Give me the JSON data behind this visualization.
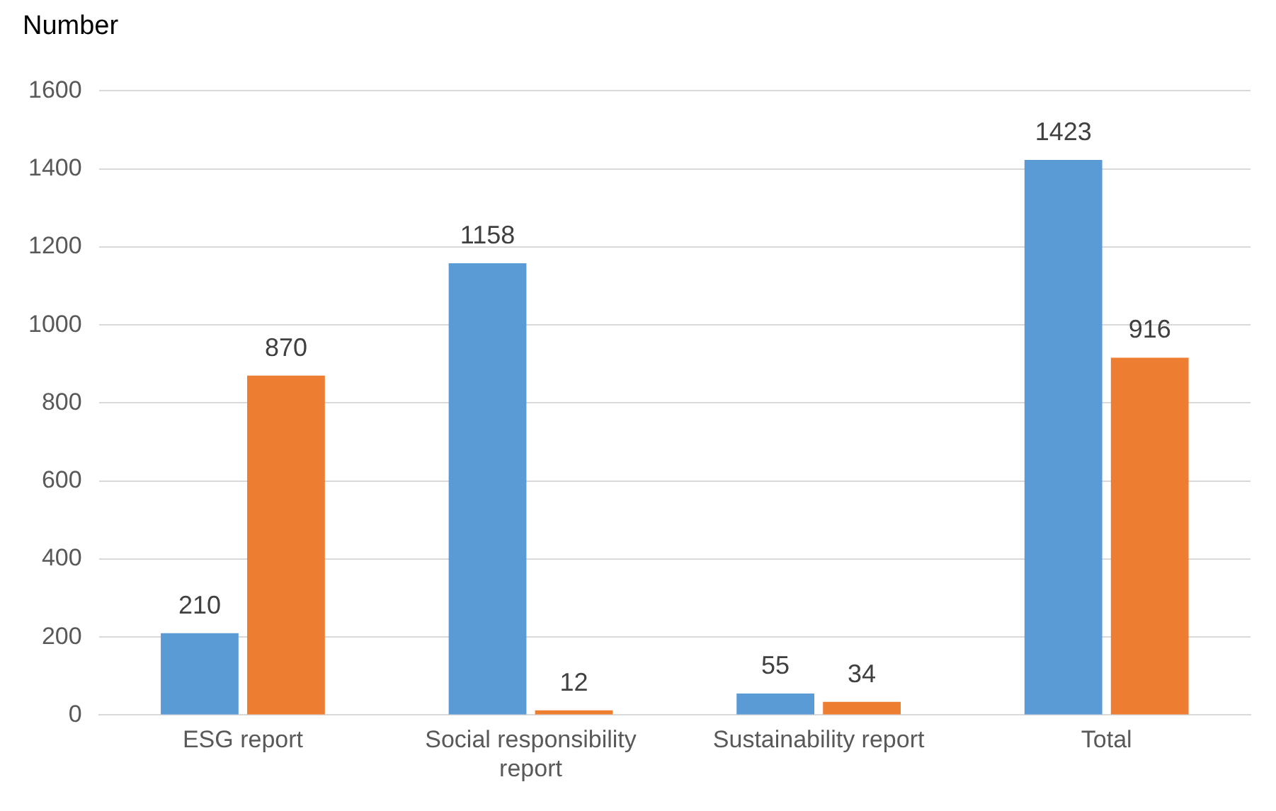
{
  "chart_data": {
    "type": "bar",
    "ylabel": "Number",
    "categories": [
      "ESG report",
      "Social responsibility report",
      "Sustainability report",
      "Total"
    ],
    "series": [
      {
        "color": "#5b9bd5",
        "values": [
          210,
          1158,
          55,
          1423
        ]
      },
      {
        "color": "#ed7d31",
        "values": [
          870,
          12,
          34,
          916
        ]
      }
    ],
    "ylim": [
      0,
      1600
    ],
    "yticks": [
      0,
      200,
      400,
      600,
      800,
      1000,
      1200,
      1400,
      1600
    ],
    "grid": "y",
    "data_labels": true,
    "legend": false
  }
}
